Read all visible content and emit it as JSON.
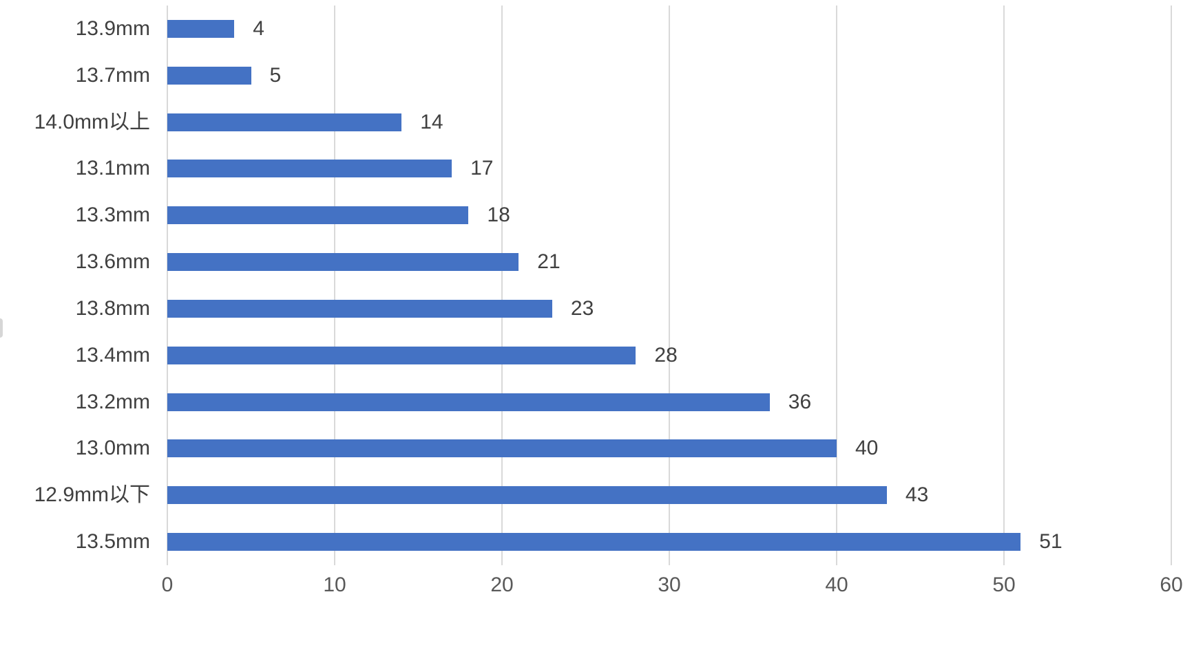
{
  "chart_data": {
    "type": "bar",
    "orientation": "horizontal",
    "title": "",
    "xlabel": "",
    "ylabel": "",
    "categories": [
      "13.9mm",
      "13.7mm",
      "14.0mm以上",
      "13.1mm",
      "13.3mm",
      "13.6mm",
      "13.8mm",
      "13.4mm",
      "13.2mm",
      "13.0mm",
      "12.9mm以下",
      "13.5mm"
    ],
    "values": [
      4,
      5,
      14,
      17,
      18,
      21,
      23,
      28,
      36,
      40,
      43,
      51
    ],
    "data_labels": [
      "4",
      "5",
      "14",
      "17",
      "18",
      "21",
      "23",
      "28",
      "36",
      "40",
      "43",
      "51"
    ],
    "xlim": [
      0,
      60
    ],
    "x_ticks": [
      0,
      10,
      20,
      30,
      40,
      50,
      60
    ],
    "grid": true,
    "legend": false,
    "colors": {
      "bar": "#4472C4",
      "gridline": "#D9D9D9",
      "data_label": "#404040",
      "axis_tick_label": "#595959",
      "background": "#FFFFFF"
    }
  }
}
